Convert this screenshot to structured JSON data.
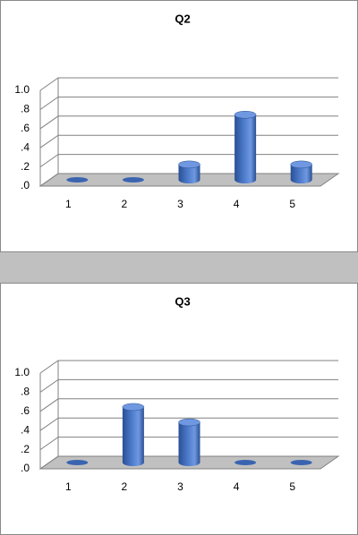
{
  "chart_data": [
    {
      "type": "bar",
      "title": "Q2",
      "categories": [
        "1",
        "2",
        "3",
        "4",
        "5"
      ],
      "values": [
        0,
        0,
        0.16,
        0.68,
        0.16
      ],
      "color": "#4a78c8",
      "ylim": [
        0,
        1
      ],
      "yticks": [
        {
          "value": 0,
          "label": ".0"
        },
        {
          "value": 0.2,
          "label": ".2"
        },
        {
          "value": 0.4,
          "label": ".4"
        },
        {
          "value": 0.6,
          "label": ".6"
        },
        {
          "value": 0.8,
          "label": ".8"
        },
        {
          "value": 1,
          "label": "1.0"
        }
      ],
      "grid": true
    },
    {
      "type": "bar",
      "title": "Q3",
      "categories": [
        "1",
        "2",
        "3",
        "4",
        "5"
      ],
      "values": [
        0,
        0.58,
        0.42,
        0,
        0
      ],
      "color": "#4a78c8",
      "ylim": [
        0,
        1
      ],
      "yticks": [
        {
          "value": 0,
          "label": ".0"
        },
        {
          "value": 0.2,
          "label": ".2"
        },
        {
          "value": 0.4,
          "label": ".4"
        },
        {
          "value": 0.6,
          "label": ".6"
        },
        {
          "value": 0.8,
          "label": ".8"
        },
        {
          "value": 1,
          "label": "1.0"
        }
      ],
      "grid": true
    }
  ]
}
